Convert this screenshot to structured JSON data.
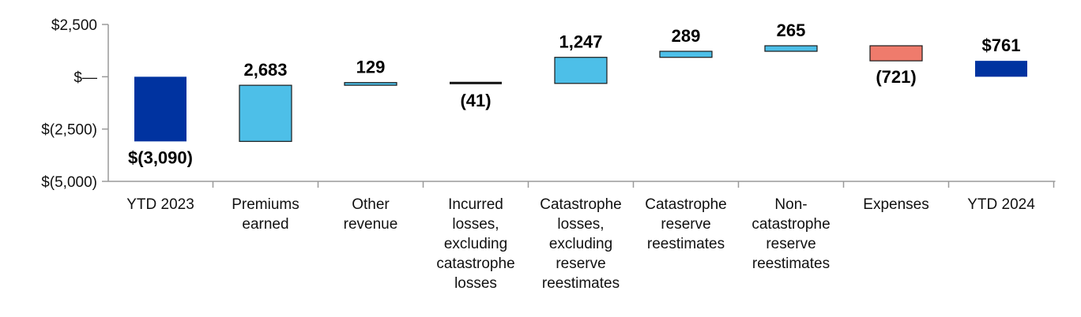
{
  "chart_data": {
    "type": "waterfall",
    "ylim": [
      -5000,
      2500
    ],
    "yticks": [
      {
        "value": 2500,
        "label": "$2,500"
      },
      {
        "value": 0,
        "label": "$—"
      },
      {
        "value": -2500,
        "label": "$(2,500)"
      },
      {
        "value": -5000,
        "label": "$(5,000)"
      }
    ],
    "grid": false,
    "categories": [
      [
        "YTD 2023"
      ],
      [
        "Premiums",
        "earned"
      ],
      [
        "Other",
        "revenue"
      ],
      [
        "Incurred",
        "losses,",
        "excluding",
        "catastrophe",
        "losses"
      ],
      [
        "Catastrophe",
        "losses,",
        "excluding",
        "reserve",
        "reestimates"
      ],
      [
        "Catastrophe",
        "reserve",
        "reestimates"
      ],
      [
        "Non-",
        "catastrophe",
        "reserve",
        "reestimates"
      ],
      [
        "Expenses"
      ],
      [
        "YTD 2024"
      ]
    ],
    "bars": [
      {
        "kind": "total",
        "start": 0,
        "end": -3090,
        "value": -3090,
        "label": "$(3,090)",
        "label_pos": "below",
        "color": "#0033A0"
      },
      {
        "kind": "delta",
        "start": -3090,
        "end": -407,
        "value": 2683,
        "label": "2,683",
        "label_pos": "above",
        "color": "#4DBFE8"
      },
      {
        "kind": "delta",
        "start": -407,
        "end": -278,
        "value": 129,
        "label": "129",
        "label_pos": "above",
        "color": "#4DBFE8"
      },
      {
        "kind": "delta",
        "start": -278,
        "end": -319,
        "value": -41,
        "label": "(41)",
        "label_pos": "below",
        "color": "#111111"
      },
      {
        "kind": "delta",
        "start": -319,
        "end": 928,
        "value": 1247,
        "label": "1,247",
        "label_pos": "above",
        "color": "#4DBFE8"
      },
      {
        "kind": "delta",
        "start": 928,
        "end": 1217,
        "value": 289,
        "label": "289",
        "label_pos": "above",
        "color": "#4DBFE8"
      },
      {
        "kind": "delta",
        "start": 1217,
        "end": 1482,
        "value": 265,
        "label": "265",
        "label_pos": "above",
        "color": "#4DBFE8"
      },
      {
        "kind": "delta",
        "start": 1482,
        "end": 761,
        "value": -721,
        "label": "(721)",
        "label_pos": "below",
        "color": "#EF7B6C"
      },
      {
        "kind": "total",
        "start": 0,
        "end": 761,
        "value": 761,
        "label": "$761",
        "label_pos": "above",
        "color": "#0033A0"
      }
    ]
  }
}
